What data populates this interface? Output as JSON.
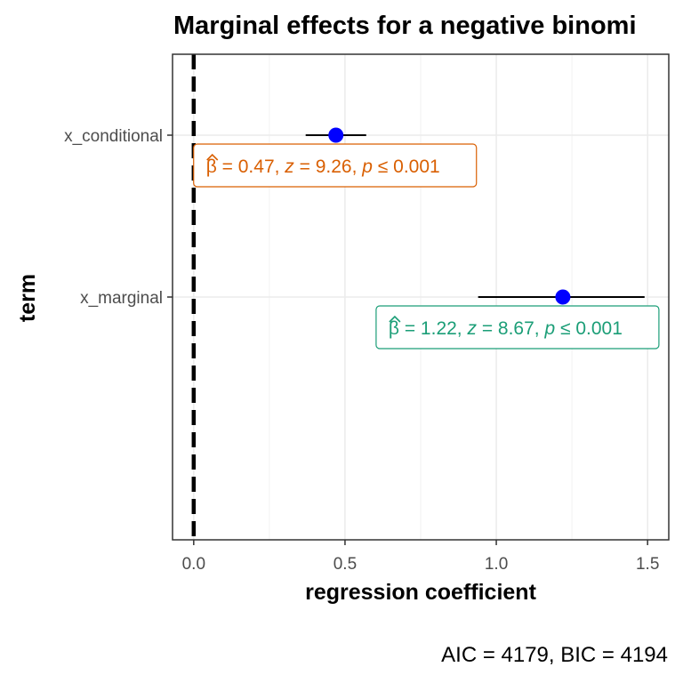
{
  "chart_data": {
    "type": "scatter",
    "title": "Marginal effects for a negative binomi",
    "xlabel": "regression coefficient",
    "ylabel": "term",
    "xlim": [
      -0.07,
      1.57
    ],
    "x_ticks": [
      "0.0",
      "0.5",
      "1.0",
      "1.5"
    ],
    "x_tick_values": [
      0,
      0.5,
      1.0,
      1.5
    ],
    "grid": true,
    "reference_line": 0,
    "caption": "AIC = 4179, BIC = 4194",
    "colors": {
      "point": "#0000ff",
      "errorbar": "#000000",
      "reference": "#000000"
    },
    "terms": [
      {
        "name": "x_conditional",
        "estimate": 0.47,
        "ci_low": 0.37,
        "ci_high": 0.57,
        "label": {
          "beta": "0.47",
          "z": "9.26",
          "p": "0.001"
        },
        "color": "#d95f02"
      },
      {
        "name": "x_marginal",
        "estimate": 1.22,
        "ci_low": 0.94,
        "ci_high": 1.49,
        "label": {
          "beta": "1.22",
          "z": "8.67",
          "p": "0.001"
        },
        "color": "#1b9e77"
      }
    ]
  }
}
